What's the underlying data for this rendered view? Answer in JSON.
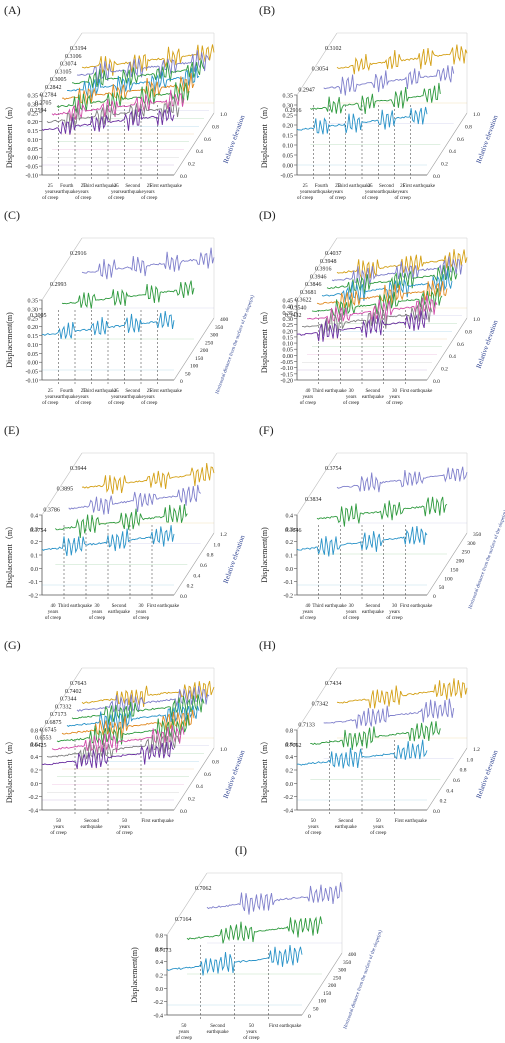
{
  "figure": {
    "series_colors": [
      "#6a2fa0",
      "#808080",
      "#d04aa8",
      "#2f9a3e",
      "#e08a22",
      "#2a93c8",
      "#2f9a3e",
      "#7c7cc8",
      "#d4a017",
      "#48b0c8"
    ],
    "layer_colors_two": [
      "#2a93c8",
      "#2f9a3e",
      "#8080cc"
    ],
    "panels_ref": "chart_data"
  },
  "chart_data": [
    {
      "type": "line",
      "panel": "(A)",
      "ylabel": "Displacement（m）",
      "yticks": [
        "0.35",
        "0.30",
        "0.25",
        "0.20",
        "0.15",
        "0.10",
        "0.05",
        "0.00",
        "-0.05",
        "-0.10"
      ],
      "ylim": [
        -0.1,
        0.35
      ],
      "zlabel": "Relative elevation",
      "zticks": [
        "0.0",
        "0.2",
        "0.4",
        "0.6",
        "0.8",
        "1.0"
      ],
      "stages": [
        "25 years of creep",
        "Fourth earthquake",
        "25 years of creep",
        "Third earthquake",
        "25 years of creep",
        "Second earthquake",
        "25 years of creep",
        "First earthquake"
      ],
      "peak_labels": [
        "0.2594",
        "0.2705",
        "0.2784",
        "0.2842",
        "0.3005",
        "0.3105",
        "0.3074",
        "0.3106",
        "0.3194"
      ]
    },
    {
      "type": "line",
      "panel": "(B)",
      "ylabel": "Displacement（m）",
      "yticks": [
        "0.35",
        "0.30",
        "0.25",
        "0.20",
        "0.15",
        "0.10",
        "0.05",
        "0.00",
        "-0.05"
      ],
      "ylim": [
        -0.05,
        0.35
      ],
      "zlabel": "Relative elevation",
      "zticks": [
        "0.0",
        "0.2",
        "0.4",
        "0.6",
        "0.8",
        "1.0"
      ],
      "stages": [
        "25 years of creep",
        "Fourth earthquake",
        "25 years of creep",
        "Third earthquake",
        "25 years of creep",
        "Second earthquake",
        "25 years of creep",
        "First earthquake"
      ],
      "peak_labels": [
        "0.2916",
        "0.2947",
        "0.3054",
        "0.3102"
      ]
    },
    {
      "type": "line",
      "panel": "(C)",
      "ylabel": "Displacement(m)",
      "yticks": [
        "0.35",
        "0.30",
        "0.25",
        "0.20",
        "0.15",
        "0.10",
        "0.05",
        "0.00",
        "-0.05",
        "-0.10"
      ],
      "ylim": [
        -0.1,
        0.35
      ],
      "zlabel": "Horizontal distance from the surface of the slope(m)",
      "zticks": [
        "0",
        "50",
        "100",
        "150",
        "200",
        "250",
        "300",
        "350",
        "400"
      ],
      "stages": [
        "25 years of creep",
        "Fourth earthquake",
        "25 years of creep",
        "Third earthquake",
        "25 years of creep",
        "Second earthquake",
        "25 years of creep",
        "First earthquake"
      ],
      "peak_labels": [
        "0.3005",
        "0.2993",
        "0.2916"
      ]
    },
    {
      "type": "line",
      "panel": "(D)",
      "ylabel": "Displacement（m）",
      "yticks": [
        "0.45",
        "0.40",
        "0.35",
        "0.30",
        "0.25",
        "0.20",
        "0.15",
        "0.10",
        "0.05",
        "0.00",
        "-0.05",
        "-0.10",
        "-0.15",
        "-0.20"
      ],
      "ylim": [
        -0.2,
        0.45
      ],
      "zlabel": "Relative elevation",
      "zticks": [
        "0.0",
        "0.2",
        "0.4",
        "0.6",
        "0.8",
        "1.0"
      ],
      "stages": [
        "40 years of creep",
        "Third earthquake",
        "30 years of creep",
        "Second earthquake",
        "30 years of creep",
        "First earthquake"
      ],
      "peak_labels": [
        "0.3432",
        "0.3540",
        "0.3622",
        "0.3681",
        "0.3846",
        "0.3946",
        "0.3916",
        "0.3948",
        "0.4037"
      ]
    },
    {
      "type": "line",
      "panel": "(E)",
      "ylabel": "Displacement（m）",
      "yticks": [
        "0.4",
        "0.3",
        "0.2",
        "0.1",
        "0.0",
        "-0.1",
        "-0.2"
      ],
      "ylim": [
        -0.2,
        0.4
      ],
      "zlabel": "Relative elevation",
      "zticks": [
        "0.0",
        "0.2",
        "0.4",
        "0.6",
        "0.8",
        "1.0",
        "1.2"
      ],
      "stages": [
        "40 years of creep",
        "Third earthquake",
        "30 years of creep",
        "Second earthquake",
        "30 years of creep",
        "First earthquake"
      ],
      "peak_labels": [
        "0.3754",
        "0.3786",
        "0.3895",
        "0.3944"
      ]
    },
    {
      "type": "line",
      "panel": "(F)",
      "ylabel": "Displacement(m)",
      "yticks": [
        "0.4",
        "0.3",
        "0.2",
        "0.1",
        "0.0",
        "-0.1",
        "-0.2"
      ],
      "ylim": [
        -0.2,
        0.4
      ],
      "zlabel": "Horizontal distance from the surface of the slope(m)",
      "zticks": [
        "0",
        "50",
        "100",
        "150",
        "200",
        "250",
        "300",
        "350"
      ],
      "stages": [
        "40 years of creep",
        "Third earthquake",
        "30 years of creep",
        "Second earthquake",
        "30 years of creep",
        "First earthquake"
      ],
      "peak_labels": [
        "0.3846",
        "0.3834",
        "0.3754"
      ]
    },
    {
      "type": "line",
      "panel": "(G)",
      "ylabel": "Displacement（m）",
      "yticks": [
        "0.8",
        "0.6",
        "0.4",
        "0.2",
        "0.0",
        "-0.2",
        "-0.4"
      ],
      "ylim": [
        -0.4,
        0.8
      ],
      "zlabel": "Relative elevation",
      "zticks": [
        "0.0",
        "0.2",
        "0.4",
        "0.6",
        "0.8",
        "1.0"
      ],
      "stages": [
        "50 years of creep",
        "Second earthquake",
        "50 years of creep",
        "First earthquake"
      ],
      "peak_labels": [
        "0.6425",
        "0.6553",
        "0.6745",
        "0.6875",
        "0.7173",
        "0.7332",
        "0.7344",
        "0.7402",
        "0.7643"
      ]
    },
    {
      "type": "line",
      "panel": "(H)",
      "ylabel": "Displacement（m）",
      "yticks": [
        "0.8",
        "0.6",
        "0.4",
        "0.2",
        "0.0",
        "-0.2",
        "-0.4"
      ],
      "ylim": [
        -0.4,
        0.8
      ],
      "zlabel": "Relative elevation",
      "zticks": [
        "0.0",
        "0.2",
        "0.4",
        "0.6",
        "0.8",
        "1.0",
        "1.2"
      ],
      "stages": [
        "50 years of creep",
        "Second earthquake",
        "50 years of creep",
        "First earthquake"
      ],
      "peak_labels": [
        "0.7062",
        "0.7133",
        "0.7342",
        "0.7434"
      ]
    },
    {
      "type": "line",
      "panel": "(I)",
      "ylabel": "Displacement(m)",
      "yticks": [
        "0.8",
        "0.6",
        "0.4",
        "0.2",
        "0.0",
        "-0.2",
        "-0.4"
      ],
      "ylim": [
        -0.4,
        0.8
      ],
      "zlabel": "Horizontal distance from the surface of the slope(m)",
      "zticks": [
        "0",
        "50",
        "100",
        "150",
        "200",
        "250",
        "300",
        "350",
        "400"
      ],
      "stages": [
        "50 years of creep",
        "Second earthquake",
        "50 years of creep",
        "First earthquake"
      ],
      "peak_labels": [
        "0.7173",
        "0.7164",
        "0.7062"
      ]
    }
  ]
}
